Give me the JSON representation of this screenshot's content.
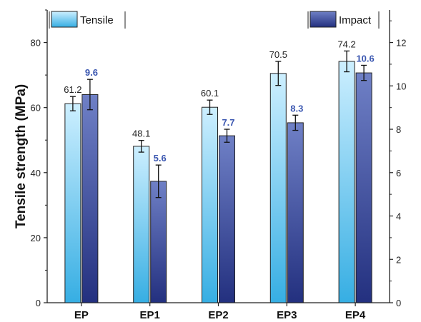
{
  "chart_data": {
    "type": "bar",
    "categories": [
      "EP",
      "EP1",
      "EP2",
      "EP3",
      "EP4"
    ],
    "ylabel": "Tensile strength (MPa)",
    "ylim": [
      0,
      90
    ],
    "yticks": [
      "0",
      "20",
      "40",
      "60",
      "80"
    ],
    "y2lim": [
      0,
      13.5
    ],
    "y2ticks": [
      "0",
      "2",
      "4",
      "6",
      "8",
      "10",
      "12"
    ],
    "legend": "top",
    "grid": false,
    "series": [
      {
        "name": "Tensile",
        "axis": "left",
        "values": [
          61.2,
          48.1,
          60.1,
          70.5,
          74.2
        ],
        "labels": [
          "61.2",
          "48.1",
          "60.1",
          "70.5",
          "74.2"
        ],
        "errors": [
          2.2,
          1.8,
          2.2,
          3.7,
          3.2
        ]
      },
      {
        "name": "Impact",
        "axis": "right",
        "values": [
          9.6,
          5.6,
          7.7,
          8.3,
          10.6
        ],
        "labels": [
          "9.6",
          "5.6",
          "7.7",
          "8.3",
          "10.6"
        ],
        "errors": [
          0.7,
          0.75,
          0.3,
          0.35,
          0.35
        ]
      }
    ],
    "colors": {
      "tensile_top": "#cdefff",
      "tensile_bottom": "#36aee3",
      "impact_top": "#6f80c6",
      "impact_bottom": "#23307f",
      "impact_label": "#3a56b0"
    }
  }
}
